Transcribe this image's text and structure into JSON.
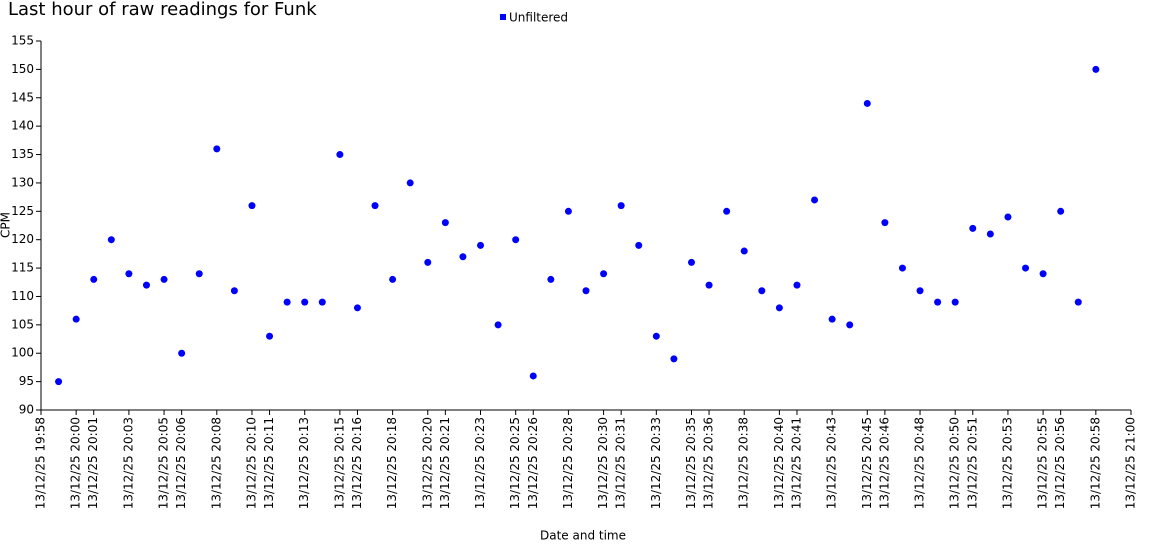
{
  "chart_data": {
    "type": "scatter",
    "title": "Last hour of raw readings for Funk",
    "x_label": "Date and time",
    "y_label": "CPM",
    "x": [
      "13/12/25 19:59",
      "13/12/25 20:00",
      "13/12/25 20:01",
      "13/12/25 20:02",
      "13/12/25 20:03",
      "13/12/25 20:04",
      "13/12/25 20:05",
      "13/12/25 20:06",
      "13/12/25 20:07",
      "13/12/25 20:08",
      "13/12/25 20:09",
      "13/12/25 20:10",
      "13/12/25 20:11",
      "13/12/25 20:12",
      "13/12/25 20:13",
      "13/12/25 20:14",
      "13/12/25 20:15",
      "13/12/25 20:16",
      "13/12/25 20:17",
      "13/12/25 20:18",
      "13/12/25 20:19",
      "13/12/25 20:20",
      "13/12/25 20:21",
      "13/12/25 20:22",
      "13/12/25 20:23",
      "13/12/25 20:24",
      "13/12/25 20:25",
      "13/12/25 20:26",
      "13/12/25 20:27",
      "13/12/25 20:28",
      "13/12/25 20:29",
      "13/12/25 20:30",
      "13/12/25 20:31",
      "13/12/25 20:32",
      "13/12/25 20:33",
      "13/12/25 20:34",
      "13/12/25 20:35",
      "13/12/25 20:36",
      "13/12/25 20:37",
      "13/12/25 20:38",
      "13/12/25 20:39",
      "13/12/25 20:40",
      "13/12/25 20:41",
      "13/12/25 20:42",
      "13/12/25 20:43",
      "13/12/25 20:44",
      "13/12/25 20:45",
      "13/12/25 20:46",
      "13/12/25 20:47",
      "13/12/25 20:48",
      "13/12/25 20:49",
      "13/12/25 20:50",
      "13/12/25 20:51",
      "13/12/25 20:52",
      "13/12/25 20:53",
      "13/12/25 20:54",
      "13/12/25 20:55",
      "13/12/25 20:56",
      "13/12/25 20:57",
      "13/12/25 20:58"
    ],
    "series": [
      {
        "name": "Unfiltered",
        "color": "#0000ff",
        "values": [
          95,
          106,
          113,
          120,
          114,
          112,
          113,
          100,
          114,
          136,
          111,
          126,
          103,
          109,
          109,
          109,
          135,
          108,
          126,
          113,
          130,
          116,
          123,
          117,
          119,
          105,
          120,
          96,
          113,
          125,
          111,
          114,
          126,
          119,
          103,
          99,
          116,
          112,
          125,
          118,
          111,
          108,
          112,
          127,
          106,
          105,
          144,
          123,
          115,
          111,
          109,
          109,
          122,
          121,
          124,
          115,
          114,
          125,
          109,
          150
        ]
      }
    ],
    "xlim": [
      "13/12/25 19:58",
      "13/12/25 21:00"
    ],
    "xticks": [
      "13/12/25 19:58",
      "13/12/25 20:00",
      "13/12/25 20:01",
      "13/12/25 20:03",
      "13/12/25 20:05",
      "13/12/25 20:06",
      "13/12/25 20:08",
      "13/12/25 20:10",
      "13/12/25 20:11",
      "13/12/25 20:13",
      "13/12/25 20:15",
      "13/12/25 20:16",
      "13/12/25 20:18",
      "13/12/25 20:20",
      "13/12/25 20:21",
      "13/12/25 20:23",
      "13/12/25 20:25",
      "13/12/25 20:26",
      "13/12/25 20:28",
      "13/12/25 20:30",
      "13/12/25 20:31",
      "13/12/25 20:33",
      "13/12/25 20:35",
      "13/12/25 20:36",
      "13/12/25 20:38",
      "13/12/25 20:40",
      "13/12/25 20:41",
      "13/12/25 20:43",
      "13/12/25 20:45",
      "13/12/25 20:46",
      "13/12/25 20:48",
      "13/12/25 20:50",
      "13/12/25 20:51",
      "13/12/25 20:53",
      "13/12/25 20:55",
      "13/12/25 20:56",
      "13/12/25 20:58",
      "13/12/25 21:00"
    ],
    "ylim": [
      90,
      155
    ],
    "yticks": [
      90,
      95,
      100,
      105,
      110,
      115,
      120,
      125,
      130,
      135,
      140,
      145,
      150,
      155
    ],
    "grid": false
  }
}
